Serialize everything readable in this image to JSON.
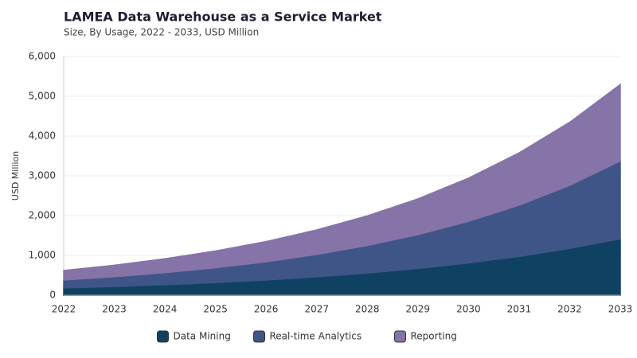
{
  "chart_data": {
    "type": "stacked_area",
    "title": "LAMEA Data Warehouse as a Service Market",
    "subtitle": "Size, By Usage, 2022 - 2033, USD Million",
    "ylabel": "USD Million",
    "x": [
      2022,
      2023,
      2024,
      2025,
      2026,
      2027,
      2028,
      2029,
      2030,
      2031,
      2032,
      2033
    ],
    "xlim": [
      2022,
      2033
    ],
    "ylim": [
      0,
      6000
    ],
    "yticks": [
      0,
      {
        "value": 1000,
        "label": "1,000"
      },
      {
        "value": 2000,
        "label": "2,000"
      },
      {
        "value": 3000,
        "label": "3,000"
      },
      {
        "value": 4000,
        "label": "4,000"
      },
      {
        "value": 5000,
        "label": "5,000"
      },
      {
        "value": 6000,
        "label": "6,000"
      }
    ],
    "grid": true,
    "legend": "bottom",
    "series": [
      {
        "name": "Data Mining",
        "color": "#0f4262",
        "values": [
          180,
          217,
          262,
          316,
          381,
          460,
          555,
          669,
          807,
          973,
          1174,
          1415
        ]
      },
      {
        "name": "Real-time Analytics",
        "color": "#3f5587",
        "values": [
          200,
          246,
          302,
          372,
          457,
          563,
          692,
          851,
          1047,
          1288,
          1584,
          1960
        ]
      },
      {
        "name": "Reporting",
        "color": "#8673a8",
        "values": [
          240,
          290,
          350,
          423,
          511,
          617,
          746,
          901,
          1088,
          1315,
          1588,
          1920
        ]
      }
    ]
  }
}
